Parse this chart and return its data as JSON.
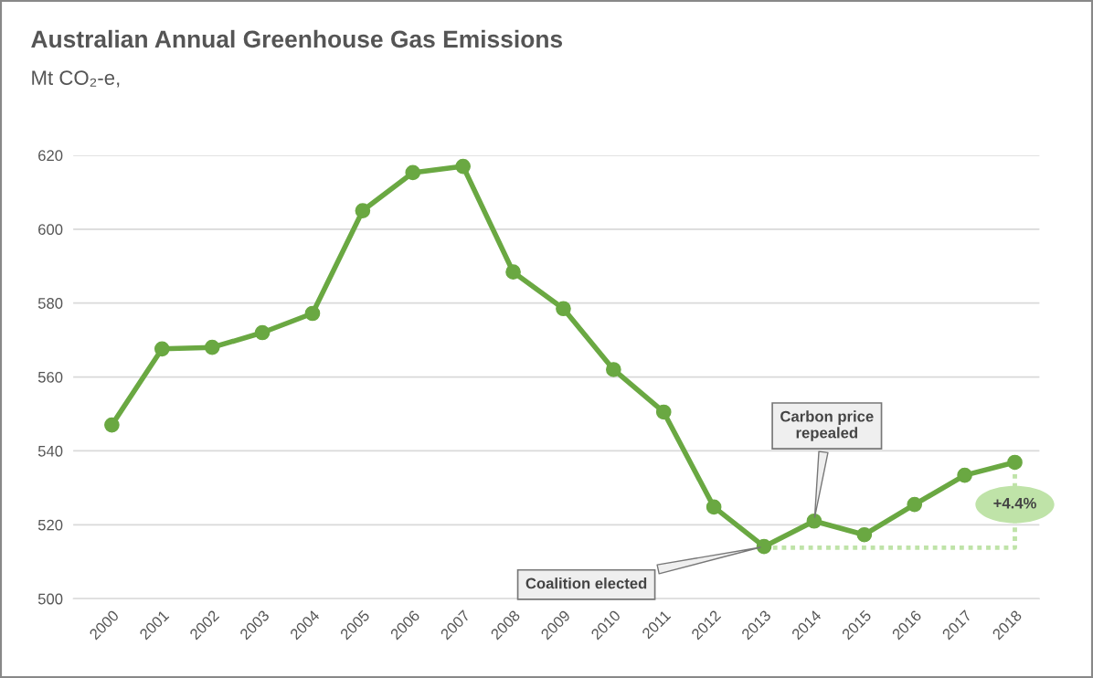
{
  "chart_data": {
    "type": "line",
    "title": "Australian Annual Greenhouse Gas Emissions",
    "subtitle": "Mt CO₂-e,",
    "categories": [
      "2000",
      "2001",
      "2002",
      "2003",
      "2004",
      "2005",
      "2006",
      "2007",
      "2008",
      "2009",
      "2010",
      "2011",
      "2012",
      "2013",
      "2014",
      "2015",
      "2016",
      "2017",
      "2018"
    ],
    "series": [
      {
        "color": "#6aa842",
        "values": [
          547,
          567.6,
          568,
          572,
          577.2,
          605,
          615.3,
          617,
          588.4,
          578.5,
          562,
          550.5,
          524.8,
          514.1,
          521,
          517.3,
          525.5,
          533.4,
          536.9
        ]
      }
    ],
    "ylim": [
      500,
      620
    ],
    "yticks": [
      500,
      520,
      540,
      560,
      580,
      600,
      620
    ],
    "grid": "y",
    "marker": "circle",
    "line_style": "solid",
    "legend": false,
    "annotations": [
      {
        "text": "Coalition elected",
        "x": "2013",
        "y": 514.1
      },
      {
        "text": "Carbon price\nrepealed",
        "x": "2014",
        "y": 521
      },
      "+4.4%"
    ]
  }
}
